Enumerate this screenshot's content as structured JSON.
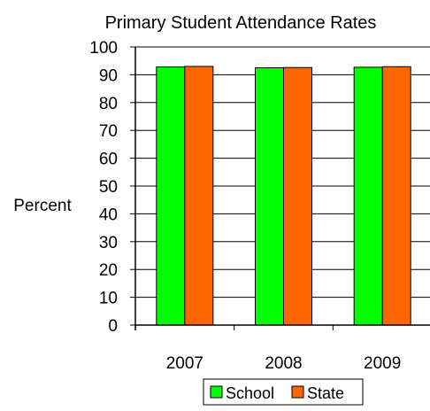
{
  "chart_data": {
    "type": "bar",
    "title": "Primary Student Attendance Rates",
    "xlabel": "",
    "ylabel": "Percent",
    "categories": [
      "2007",
      "2008",
      "2009"
    ],
    "series": [
      {
        "name": "School",
        "values": [
          92.8,
          92.5,
          92.7
        ],
        "color": "#00ff00"
      },
      {
        "name": "State",
        "values": [
          93.0,
          92.6,
          92.9
        ],
        "color": "#ff6600"
      }
    ],
    "ylim": [
      0,
      100
    ],
    "yticks": [
      "0",
      "10",
      "20",
      "30",
      "40",
      "50",
      "60",
      "70",
      "80",
      "90",
      "100"
    ],
    "grid": true,
    "legend_position": "bottom"
  }
}
